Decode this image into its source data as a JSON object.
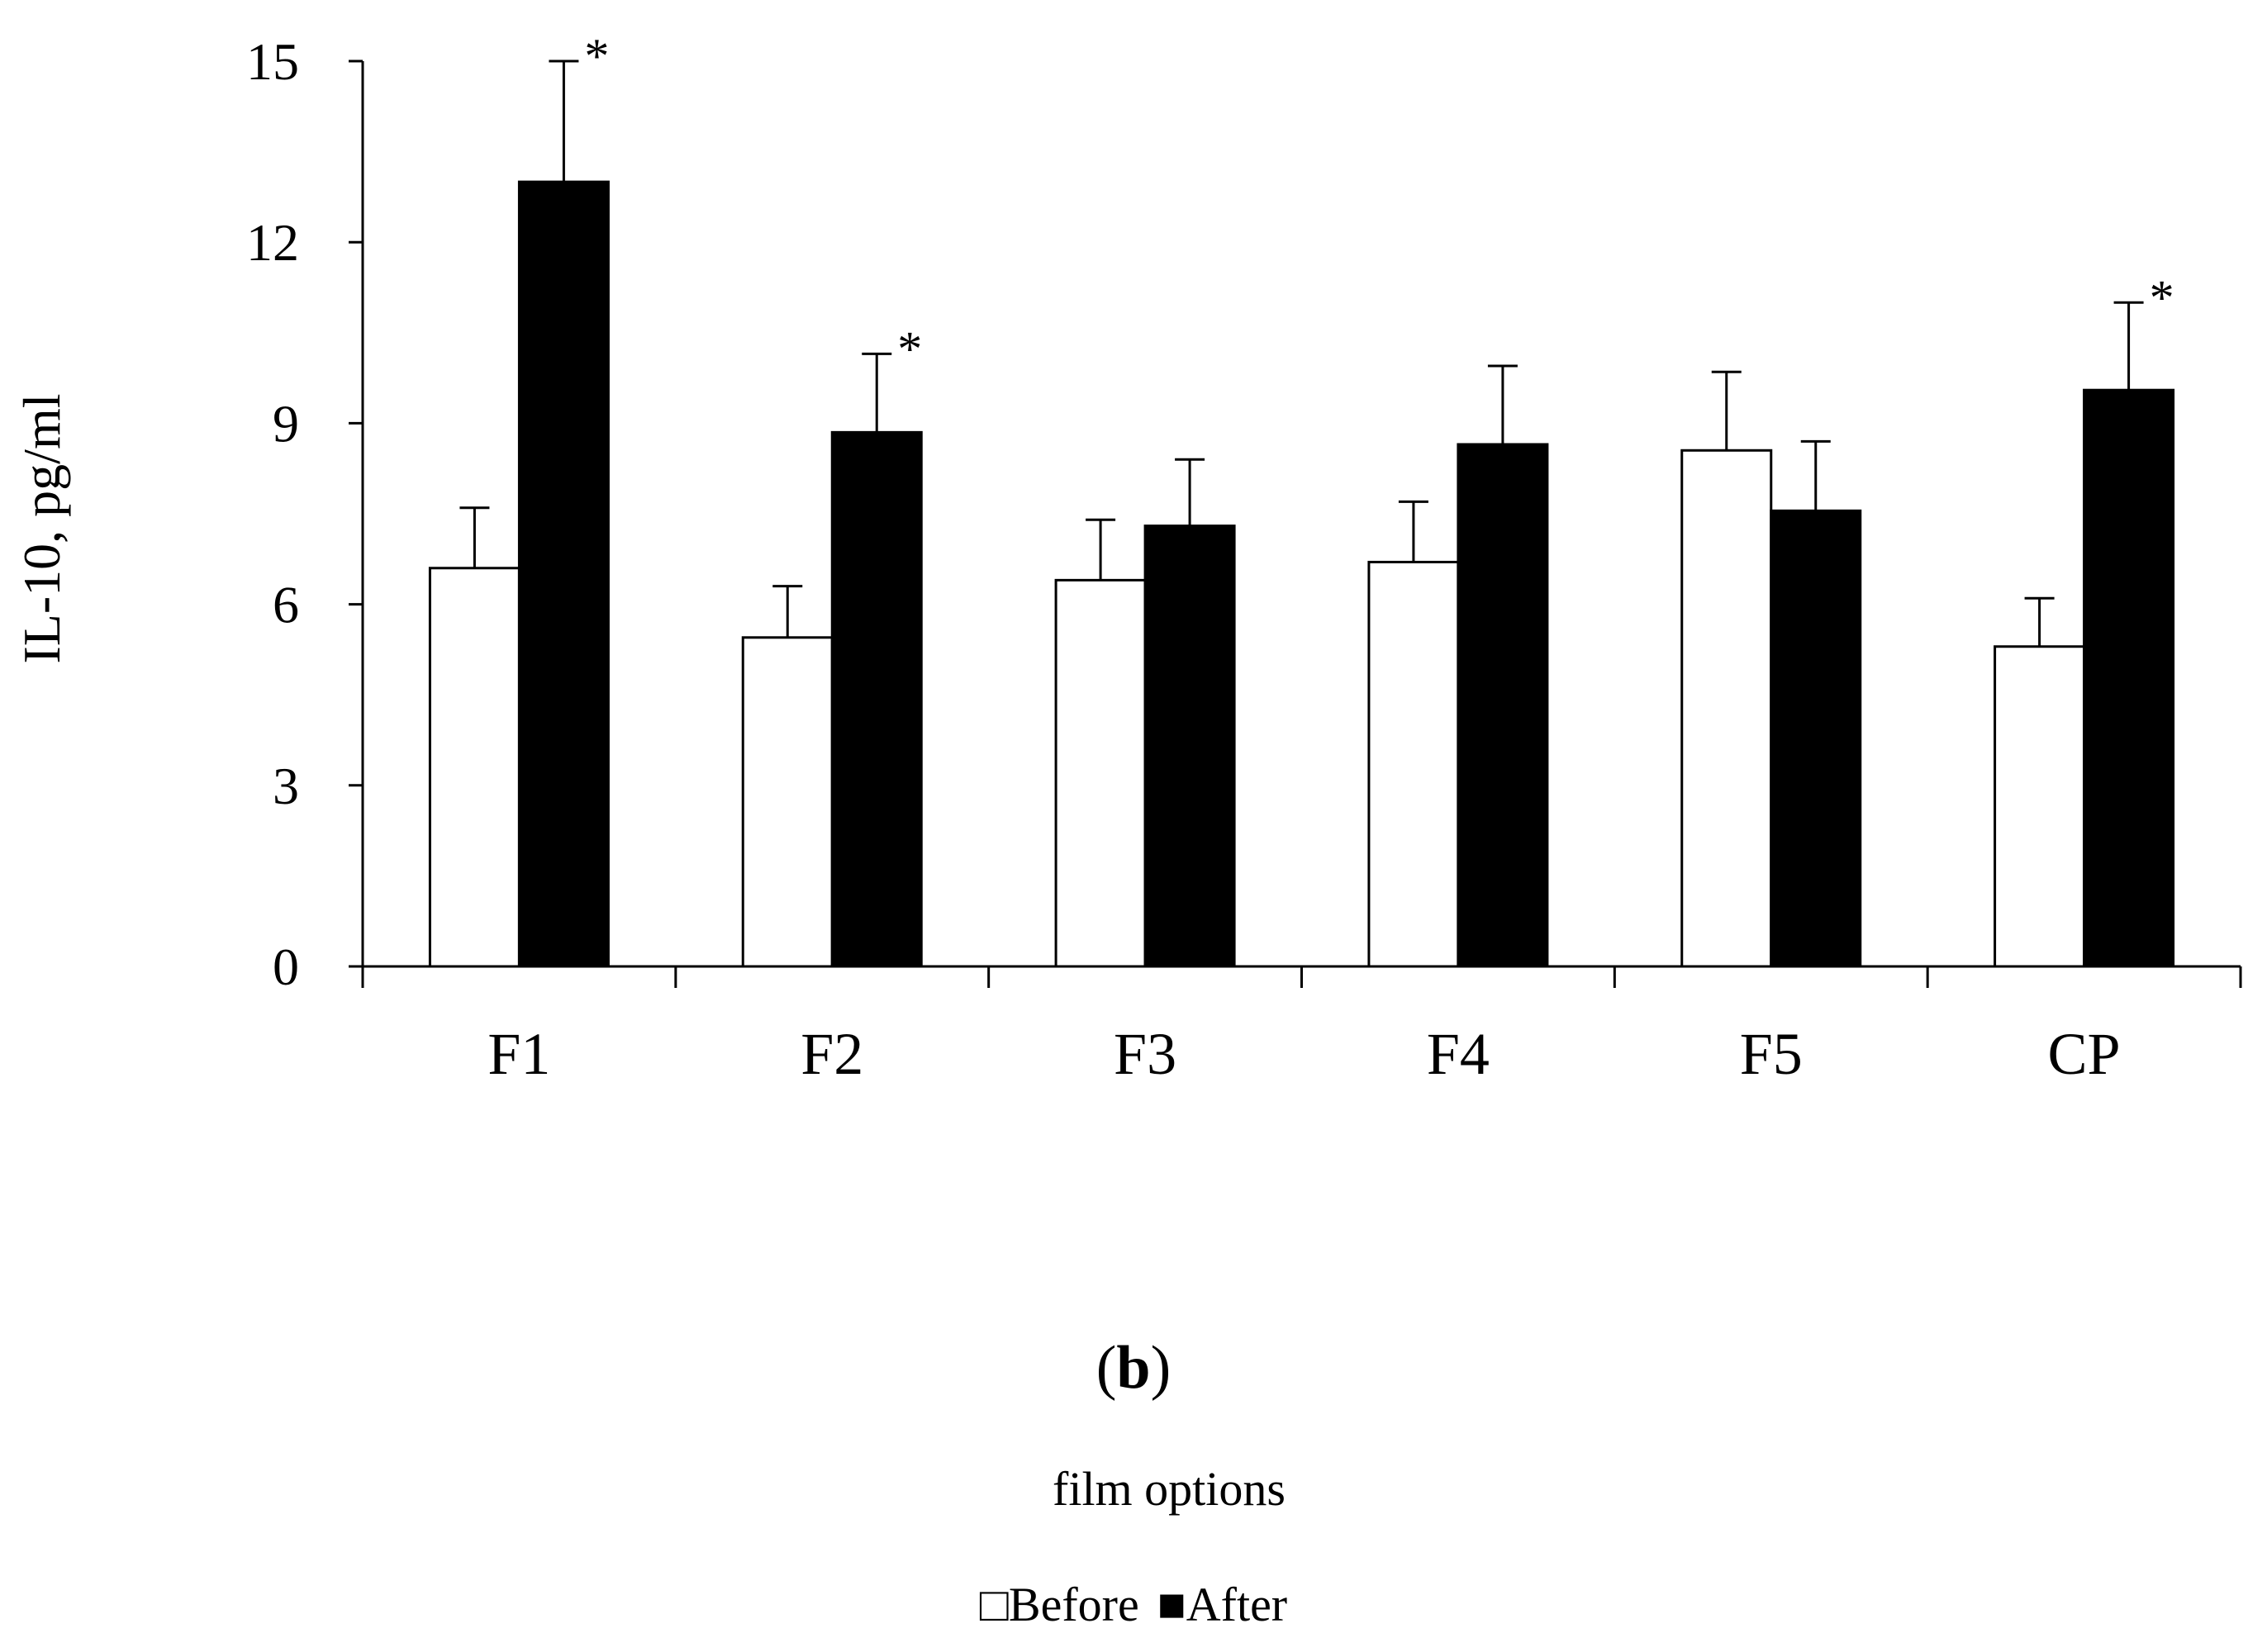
{
  "chart_data": {
    "type": "bar",
    "panel_label_open": "(",
    "panel_label_letter": "b",
    "panel_label_close": ")",
    "xlabel": "film options",
    "ylabel": "IL-10, pg/ml",
    "ylim": [
      0,
      15
    ],
    "yticks": [
      "0",
      "3",
      "6",
      "9",
      "12",
      "15"
    ],
    "ytick_values": [
      0,
      3,
      6,
      9,
      12,
      15
    ],
    "categories": [
      "F1",
      "F2",
      "F3",
      "F4",
      "F5",
      "CP"
    ],
    "series": [
      {
        "name": "Before",
        "legend_label": "□Before",
        "color": "#ffffff",
        "values": [
          6.6,
          5.45,
          6.4,
          6.7,
          8.55,
          5.3
        ],
        "errors": [
          1.0,
          0.85,
          1.0,
          1.0,
          1.3,
          0.8
        ],
        "significance": [
          "",
          "",
          "",
          "",
          "",
          ""
        ]
      },
      {
        "name": "After",
        "legend_label": "■After",
        "color": "#000000",
        "values": [
          13.0,
          8.85,
          7.3,
          8.65,
          7.55,
          9.55
        ],
        "errors": [
          2.0,
          1.3,
          1.1,
          1.3,
          1.15,
          1.45
        ],
        "significance": [
          "*",
          "*",
          "",
          "",
          "",
          "*"
        ]
      }
    ],
    "grid": false,
    "legend_position": "bottom-center"
  }
}
